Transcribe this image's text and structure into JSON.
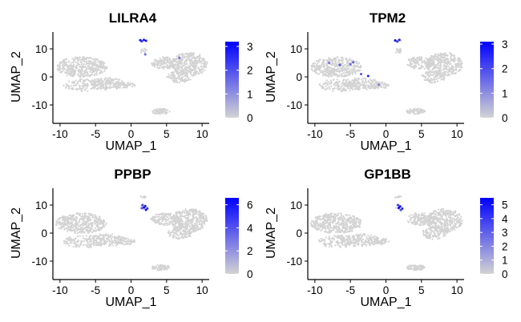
{
  "chart_data": [
    {
      "type": "scatter",
      "title": "LILRA4",
      "xlabel": "UMAP_1",
      "ylabel": "UMAP_2",
      "xlim": [
        -11,
        11
      ],
      "ylim": [
        -16,
        16
      ],
      "xticks": [
        -10,
        -5,
        0,
        5,
        10
      ],
      "yticks": [
        -10,
        0,
        10
      ],
      "colorbar": {
        "min": 0,
        "max": 3.2,
        "ticks": [
          0,
          1,
          2,
          3
        ]
      },
      "low_color": "#d3d3d3",
      "high_color": "#0000ff",
      "highlights": [
        {
          "x": 1.3,
          "y": 13.1,
          "value": 3.0
        },
        {
          "x": 1.8,
          "y": 13.2,
          "value": 2.8
        },
        {
          "x": 2.1,
          "y": 12.9,
          "value": 3.1
        },
        {
          "x": 1.5,
          "y": 12.7,
          "value": 2.5
        },
        {
          "x": 2.0,
          "y": 8.0,
          "value": 1.5
        },
        {
          "x": 6.8,
          "y": 6.8,
          "value": 1.6
        }
      ]
    },
    {
      "type": "scatter",
      "title": "TPM2",
      "xlabel": "UMAP_1",
      "ylabel": "UMAP_2",
      "xlim": [
        -11,
        11
      ],
      "ylim": [
        -16,
        16
      ],
      "xticks": [
        -10,
        -5,
        0,
        5,
        10
      ],
      "yticks": [
        -10,
        0,
        10
      ],
      "colorbar": {
        "min": 0,
        "max": 3.1,
        "ticks": [
          0,
          1,
          2,
          3
        ]
      },
      "low_color": "#d3d3d3",
      "high_color": "#0000ff",
      "highlights": [
        {
          "x": 1.3,
          "y": 13.0,
          "value": 3.0
        },
        {
          "x": 1.9,
          "y": 13.2,
          "value": 2.7
        },
        {
          "x": 1.6,
          "y": 12.6,
          "value": 2.4
        },
        {
          "x": -8.0,
          "y": 5.0,
          "value": 1.4
        },
        {
          "x": -6.5,
          "y": 4.3,
          "value": 1.8
        },
        {
          "x": -5.0,
          "y": 4.5,
          "value": 1.5
        },
        {
          "x": -3.5,
          "y": 1.0,
          "value": 1.9
        },
        {
          "x": -2.5,
          "y": 0.3,
          "value": 2.6
        },
        {
          "x": -4.6,
          "y": 5.2,
          "value": 1.7
        },
        {
          "x": -1.0,
          "y": -2.8,
          "value": 1.3
        }
      ]
    },
    {
      "type": "scatter",
      "title": "PPBP",
      "xlabel": "UMAP_1",
      "ylabel": "UMAP_2",
      "xlim": [
        -11,
        11
      ],
      "ylim": [
        -16,
        16
      ],
      "xticks": [
        -10,
        -5,
        0,
        5,
        10
      ],
      "yticks": [
        -10,
        0,
        10
      ],
      "colorbar": {
        "min": 0,
        "max": 6.6,
        "ticks": [
          0,
          2,
          4,
          6
        ]
      },
      "low_color": "#d3d3d3",
      "high_color": "#0000ff",
      "highlights": [
        {
          "x": 1.6,
          "y": 10.0,
          "value": 4.5
        },
        {
          "x": 2.0,
          "y": 9.6,
          "value": 5.8
        },
        {
          "x": 1.8,
          "y": 9.1,
          "value": 6.3
        },
        {
          "x": 2.3,
          "y": 8.8,
          "value": 5.0
        },
        {
          "x": 2.1,
          "y": 8.3,
          "value": 6.0
        },
        {
          "x": 1.5,
          "y": 8.9,
          "value": 3.8
        }
      ]
    },
    {
      "type": "scatter",
      "title": "GP1BB",
      "xlabel": "UMAP_1",
      "ylabel": "UMAP_2",
      "xlim": [
        -11,
        11
      ],
      "ylim": [
        -16,
        16
      ],
      "xticks": [
        -10,
        -5,
        0,
        5,
        10
      ],
      "yticks": [
        -10,
        0,
        10
      ],
      "colorbar": {
        "min": 0,
        "max": 5.5,
        "ticks": [
          0,
          1,
          2,
          3,
          4,
          5
        ]
      },
      "low_color": "#d3d3d3",
      "high_color": "#0000ff",
      "highlights": [
        {
          "x": 1.7,
          "y": 10.0,
          "value": 4.0
        },
        {
          "x": 2.0,
          "y": 9.5,
          "value": 5.0
        },
        {
          "x": 1.8,
          "y": 9.0,
          "value": 5.4
        },
        {
          "x": 2.3,
          "y": 8.7,
          "value": 4.6
        },
        {
          "x": 2.1,
          "y": 8.2,
          "value": 3.5
        }
      ]
    }
  ],
  "cell_clusters": [
    {
      "cx": -7.0,
      "cy": 3.5,
      "rx": 3.6,
      "ry": 3.6,
      "n": 420
    },
    {
      "cx": -3.5,
      "cy": -2.5,
      "rx": 2.8,
      "ry": 2.2,
      "n": 150
    },
    {
      "cx": -1.0,
      "cy": -3.0,
      "rx": 1.6,
      "ry": 1.2,
      "n": 60
    },
    {
      "cx": -6.5,
      "cy": -3.0,
      "rx": 3.0,
      "ry": 2.2,
      "n": 120
    },
    {
      "cx": 8.2,
      "cy": 4.5,
      "rx": 2.6,
      "ry": 4.2,
      "n": 360
    },
    {
      "cx": 4.8,
      "cy": 5.0,
      "rx": 2.0,
      "ry": 2.2,
      "n": 140
    },
    {
      "cx": 6.8,
      "cy": 0.0,
      "rx": 1.8,
      "ry": 2.2,
      "n": 100
    },
    {
      "cx": 4.2,
      "cy": -12.3,
      "rx": 1.3,
      "ry": 1.0,
      "n": 70
    },
    {
      "cx": 1.8,
      "cy": 9.2,
      "rx": 0.5,
      "ry": 1.0,
      "n": 16
    },
    {
      "cx": 1.7,
      "cy": 12.9,
      "rx": 0.5,
      "ry": 0.4,
      "n": 10
    }
  ]
}
